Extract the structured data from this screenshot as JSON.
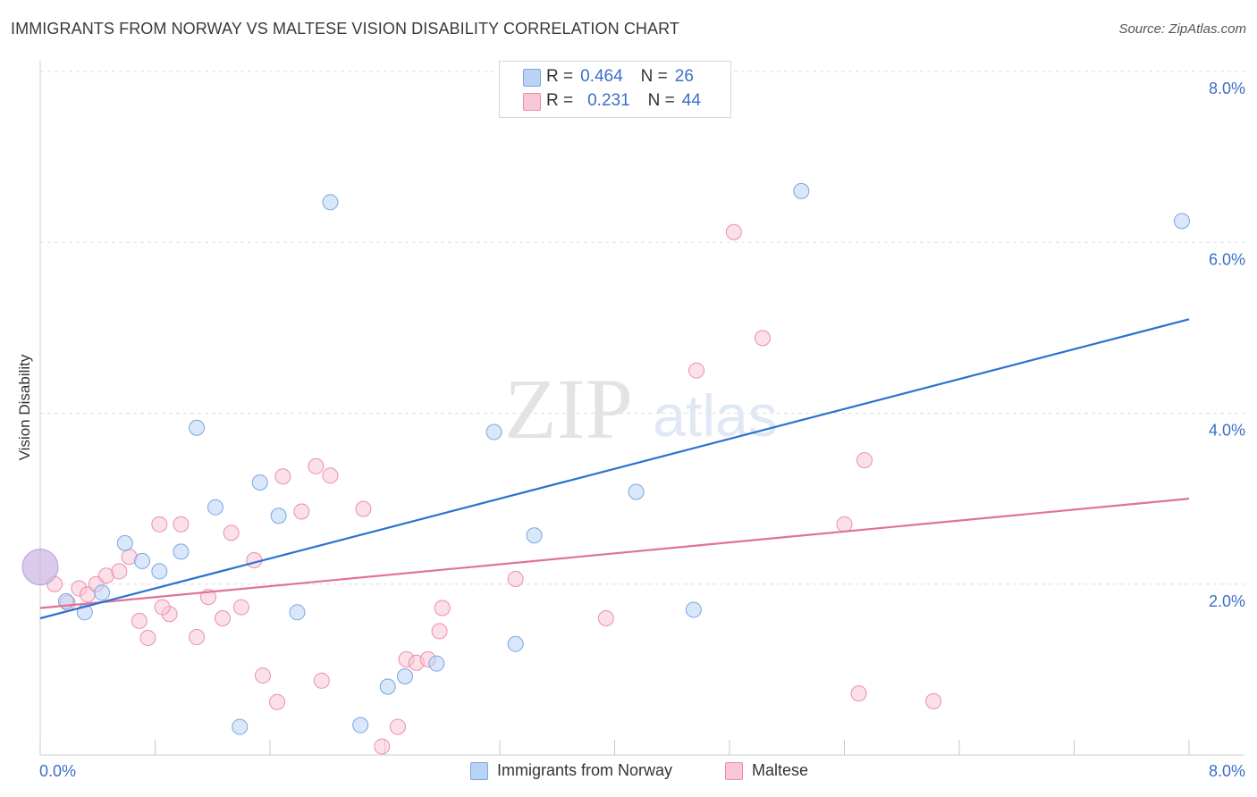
{
  "header": {
    "title": "IMMIGRANTS FROM NORWAY VS MALTESE VISION DISABILITY CORRELATION CHART",
    "source": "Source: ZipAtlas.com"
  },
  "watermark": {
    "zip": "ZIP",
    "atlas": "atlas"
  },
  "legend": {
    "norway": {
      "r_label": "R =",
      "r_value": "0.464",
      "n_label": "N =",
      "n_value": "26",
      "name": "Immigrants from Norway"
    },
    "maltese": {
      "r_label": "R =",
      "r_value": "0.231",
      "n_label": "N =",
      "n_value": "44",
      "name": "Maltese"
    }
  },
  "colors": {
    "norway_fill": "#b9d3f5",
    "norway_stroke": "#7aa6e0",
    "norway_line": "#2b72d0",
    "maltese_fill": "#f9c6d6",
    "maltese_stroke": "#e98fae",
    "maltese_line": "#e0729a",
    "axis_label": "#3b6fc6",
    "grid": "#dddddd"
  },
  "chart_data": {
    "type": "scatter",
    "title": "IMMIGRANTS FROM NORWAY VS MALTESE VISION DISABILITY CORRELATION CHART",
    "xlabel": "",
    "ylabel": "Vision Disability",
    "xlim": [
      0,
      8
    ],
    "ylim": [
      0,
      8
    ],
    "x_tick_labels": [
      "0.0%",
      "8.0%"
    ],
    "y_tick_labels": [
      "2.0%",
      "4.0%",
      "6.0%",
      "8.0%"
    ],
    "y_tick_values": [
      2,
      4,
      6,
      8
    ],
    "grid": true,
    "series": [
      {
        "name": "Immigrants from Norway",
        "color": "#7aa6e0",
        "trend": {
          "x": [
            0,
            8
          ],
          "y": [
            1.6,
            5.1
          ]
        },
        "points": [
          [
            0.0,
            2.2
          ],
          [
            0.18,
            1.8
          ],
          [
            0.31,
            1.67
          ],
          [
            0.43,
            1.9
          ],
          [
            0.59,
            2.48
          ],
          [
            0.71,
            2.27
          ],
          [
            0.83,
            2.15
          ],
          [
            0.98,
            2.38
          ],
          [
            1.09,
            3.83
          ],
          [
            1.22,
            2.9
          ],
          [
            1.39,
            0.33
          ],
          [
            1.53,
            3.19
          ],
          [
            1.66,
            2.8
          ],
          [
            1.79,
            1.67
          ],
          [
            2.02,
            6.47
          ],
          [
            2.23,
            0.35
          ],
          [
            2.42,
            0.8
          ],
          [
            2.54,
            0.92
          ],
          [
            2.76,
            1.07
          ],
          [
            3.16,
            3.78
          ],
          [
            3.31,
            1.3
          ],
          [
            3.44,
            2.57
          ],
          [
            4.15,
            3.08
          ],
          [
            4.55,
            1.7
          ],
          [
            5.3,
            6.6
          ],
          [
            7.95,
            6.25
          ]
        ]
      },
      {
        "name": "Maltese",
        "color": "#e98fae",
        "trend": {
          "x": [
            0,
            8
          ],
          "y": [
            1.72,
            3.0
          ]
        },
        "points": [
          [
            0.1,
            2.0
          ],
          [
            0.19,
            1.78
          ],
          [
            0.27,
            1.95
          ],
          [
            0.33,
            1.88
          ],
          [
            0.39,
            2.0
          ],
          [
            0.46,
            2.1
          ],
          [
            0.55,
            2.15
          ],
          [
            0.62,
            2.32
          ],
          [
            0.69,
            1.57
          ],
          [
            0.75,
            1.37
          ],
          [
            0.83,
            2.7
          ],
          [
            0.9,
            1.65
          ],
          [
            0.98,
            2.7
          ],
          [
            1.09,
            1.38
          ],
          [
            1.17,
            1.85
          ],
          [
            1.27,
            1.6
          ],
          [
            1.33,
            2.6
          ],
          [
            1.4,
            1.73
          ],
          [
            1.49,
            2.28
          ],
          [
            1.55,
            0.93
          ],
          [
            1.65,
            0.62
          ],
          [
            1.69,
            3.26
          ],
          [
            1.82,
            2.85
          ],
          [
            1.92,
            3.38
          ],
          [
            1.96,
            0.87
          ],
          [
            2.02,
            3.27
          ],
          [
            2.25,
            2.88
          ],
          [
            2.38,
            0.1
          ],
          [
            2.49,
            0.33
          ],
          [
            2.55,
            1.12
          ],
          [
            2.62,
            1.08
          ],
          [
            2.7,
            1.12
          ],
          [
            2.78,
            1.45
          ],
          [
            2.8,
            1.72
          ],
          [
            3.31,
            2.06
          ],
          [
            3.94,
            1.6
          ],
          [
            4.57,
            4.5
          ],
          [
            4.83,
            6.12
          ],
          [
            5.03,
            4.88
          ],
          [
            5.6,
            2.7
          ],
          [
            5.7,
            0.72
          ],
          [
            5.74,
            3.45
          ],
          [
            6.22,
            0.63
          ],
          [
            0.85,
            1.73
          ]
        ]
      }
    ]
  }
}
